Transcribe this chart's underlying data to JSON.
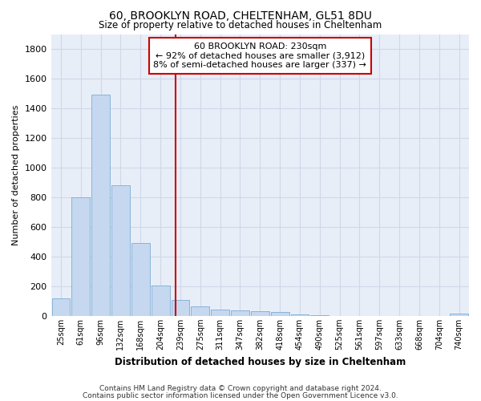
{
  "title1": "60, BROOKLYN ROAD, CHELTENHAM, GL51 8DU",
  "title2": "Size of property relative to detached houses in Cheltenham",
  "xlabel": "Distribution of detached houses by size in Cheltenham",
  "ylabel": "Number of detached properties",
  "categories": [
    "25sqm",
    "61sqm",
    "96sqm",
    "132sqm",
    "168sqm",
    "204sqm",
    "239sqm",
    "275sqm",
    "311sqm",
    "347sqm",
    "382sqm",
    "418sqm",
    "454sqm",
    "490sqm",
    "525sqm",
    "561sqm",
    "597sqm",
    "633sqm",
    "668sqm",
    "704sqm",
    "740sqm"
  ],
  "values": [
    120,
    800,
    1490,
    880,
    490,
    205,
    105,
    65,
    40,
    35,
    30,
    25,
    10,
    3,
    2,
    2,
    1,
    1,
    1,
    1,
    15
  ],
  "bar_color": "#c5d8f0",
  "bar_edge_color": "#7aadd4",
  "subject_label": "60 BROOKLYN ROAD: 230sqm",
  "annotation_line1": "← 92% of detached houses are smaller (3,912)",
  "annotation_line2": "8% of semi-detached houses are larger (337) →",
  "annotation_box_color": "#ffffff",
  "annotation_box_edge": "#cc0000",
  "vline_color": "#cc0000",
  "ylim": [
    0,
    1900
  ],
  "yticks": [
    0,
    200,
    400,
    600,
    800,
    1000,
    1200,
    1400,
    1600,
    1800
  ],
  "footnote1": "Contains HM Land Registry data © Crown copyright and database right 2024.",
  "footnote2": "Contains public sector information licensed under the Open Government Licence v3.0.",
  "bg_color": "#ffffff",
  "plot_bg_color": "#e8eef8",
  "grid_color": "#d0d8e8"
}
